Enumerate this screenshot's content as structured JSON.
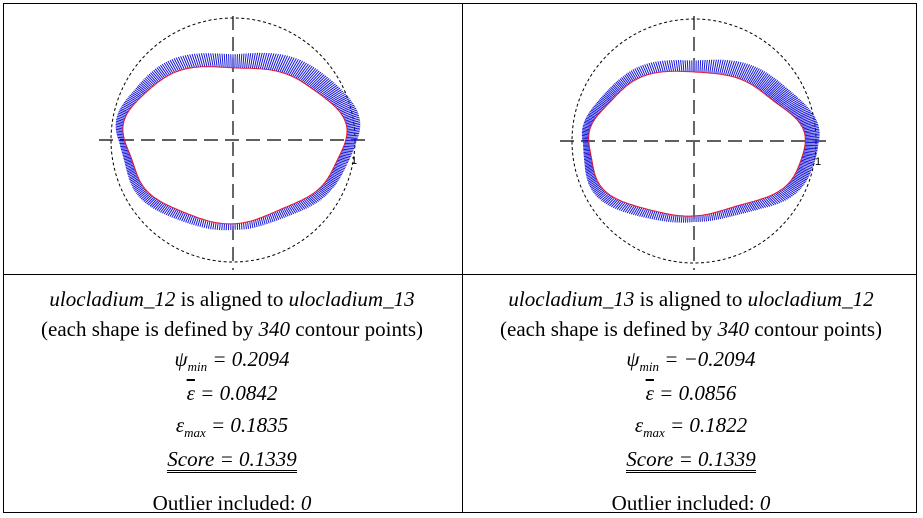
{
  "left": {
    "tick_label": "1",
    "shape_a": "ulocladium_12",
    "aligned_text": " is aligned to ",
    "shape_b": "ulocladium_13",
    "points_prefix": "(each shape is defined by ",
    "points_count": "340",
    "points_suffix": " contour points)",
    "psi_symbol": "ψ",
    "psi_sub": "min",
    "psi_value": " = 0.2094",
    "eps_symbol": "ε",
    "eps_mean_value": " = 0.0842",
    "eps_max_sub": "max",
    "eps_max_value": " = 0.1835",
    "score_label": "Score",
    "score_value": " = 0.1339",
    "outlier_label": "Outlier included: ",
    "outlier_value": "0"
  },
  "right": {
    "tick_label": "1",
    "shape_a": "ulocladium_13",
    "aligned_text": " is aligned to ",
    "shape_b": "ulocladium_12",
    "points_prefix": "(each shape is defined by ",
    "points_count": "340",
    "points_suffix": " contour points)",
    "psi_symbol": "ψ",
    "psi_sub": "min",
    "psi_value": " = −0.2094",
    "eps_symbol": "ε",
    "eps_mean_value": " = 0.0856",
    "eps_max_sub": "max",
    "eps_max_value": " = 0.1822",
    "score_label": "Score",
    "score_value": " = 0.1339",
    "outlier_label": "Outlier included: ",
    "outlier_value": "0"
  },
  "colors": {
    "contour": "#e8192c",
    "residual": "#1515d8",
    "axis": "#000000"
  }
}
